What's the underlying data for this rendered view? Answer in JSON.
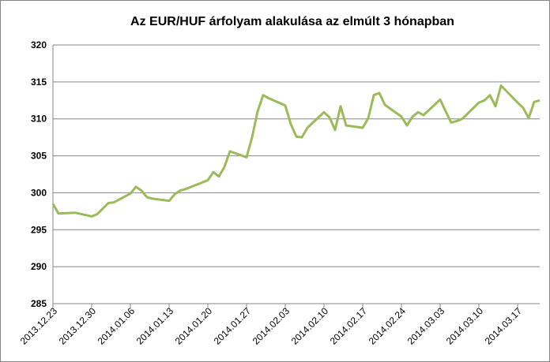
{
  "chart_data": {
    "type": "line",
    "title": "Az EUR/HUF árfolyam alakulása az elmúlt 3 hónapban",
    "x": [
      "2013.12.23",
      "2013.12.24",
      "2013.12.27",
      "2013.12.30",
      "2013.12.31",
      "2014.01.02",
      "2014.01.03",
      "2014.01.06",
      "2014.01.07",
      "2014.01.08",
      "2014.01.09",
      "2014.01.10",
      "2014.01.13",
      "2014.01.14",
      "2014.01.15",
      "2014.01.16",
      "2014.01.17",
      "2014.01.20",
      "2014.01.21",
      "2014.01.22",
      "2014.01.23",
      "2014.01.24",
      "2014.01.27",
      "2014.01.28",
      "2014.01.29",
      "2014.01.30",
      "2014.01.31",
      "2014.02.03",
      "2014.02.04",
      "2014.02.05",
      "2014.02.06",
      "2014.02.07",
      "2014.02.10",
      "2014.02.11",
      "2014.02.12",
      "2014.02.13",
      "2014.02.14",
      "2014.02.17",
      "2014.02.18",
      "2014.02.19",
      "2014.02.20",
      "2014.02.21",
      "2014.02.24",
      "2014.02.25",
      "2014.02.26",
      "2014.02.27",
      "2014.02.28",
      "2014.03.03",
      "2014.03.04",
      "2014.03.05",
      "2014.03.06",
      "2014.03.07",
      "2014.03.10",
      "2014.03.11",
      "2014.03.12",
      "2014.03.13",
      "2014.03.14",
      "2014.03.17",
      "2014.03.18",
      "2014.03.19",
      "2014.03.20",
      "2014.03.21"
    ],
    "series": [
      {
        "name": "EUR/HUF",
        "color": "#9bbb59",
        "values": [
          298.5,
          297.2,
          297.3,
          296.8,
          297.1,
          298.6,
          298.7,
          299.9,
          300.8,
          300.3,
          299.4,
          299.2,
          298.9,
          299.8,
          300.3,
          300.5,
          300.8,
          301.7,
          302.8,
          302.2,
          303.5,
          305.6,
          304.8,
          307.5,
          311.0,
          313.2,
          312.8,
          311.8,
          309.3,
          307.6,
          307.5,
          308.8,
          310.9,
          310.2,
          308.5,
          311.7,
          309.1,
          308.8,
          310.1,
          313.2,
          313.5,
          311.9,
          310.3,
          309.1,
          310.3,
          310.9,
          310.5,
          312.6,
          311.0,
          309.5,
          309.7,
          310.0,
          312.2,
          312.5,
          313.2,
          311.7,
          314.5,
          312.2,
          311.5,
          310.1,
          312.3,
          312.5
        ]
      }
    ],
    "xlim": [
      "2013.12.23",
      "2014.03.21"
    ],
    "xticks": [
      "2013.12.23",
      "2013.12.30",
      "2014.01.06",
      "2014.01.13",
      "2014.01.20",
      "2014.01.27",
      "2014.02.03",
      "2014.02.10",
      "2014.02.17",
      "2014.02.24",
      "2014.03.03",
      "2014.03.10",
      "2014.03.17"
    ],
    "ylim": [
      285,
      320
    ],
    "yticks": [
      285,
      290,
      295,
      300,
      305,
      310,
      315,
      320
    ],
    "grid": true
  }
}
